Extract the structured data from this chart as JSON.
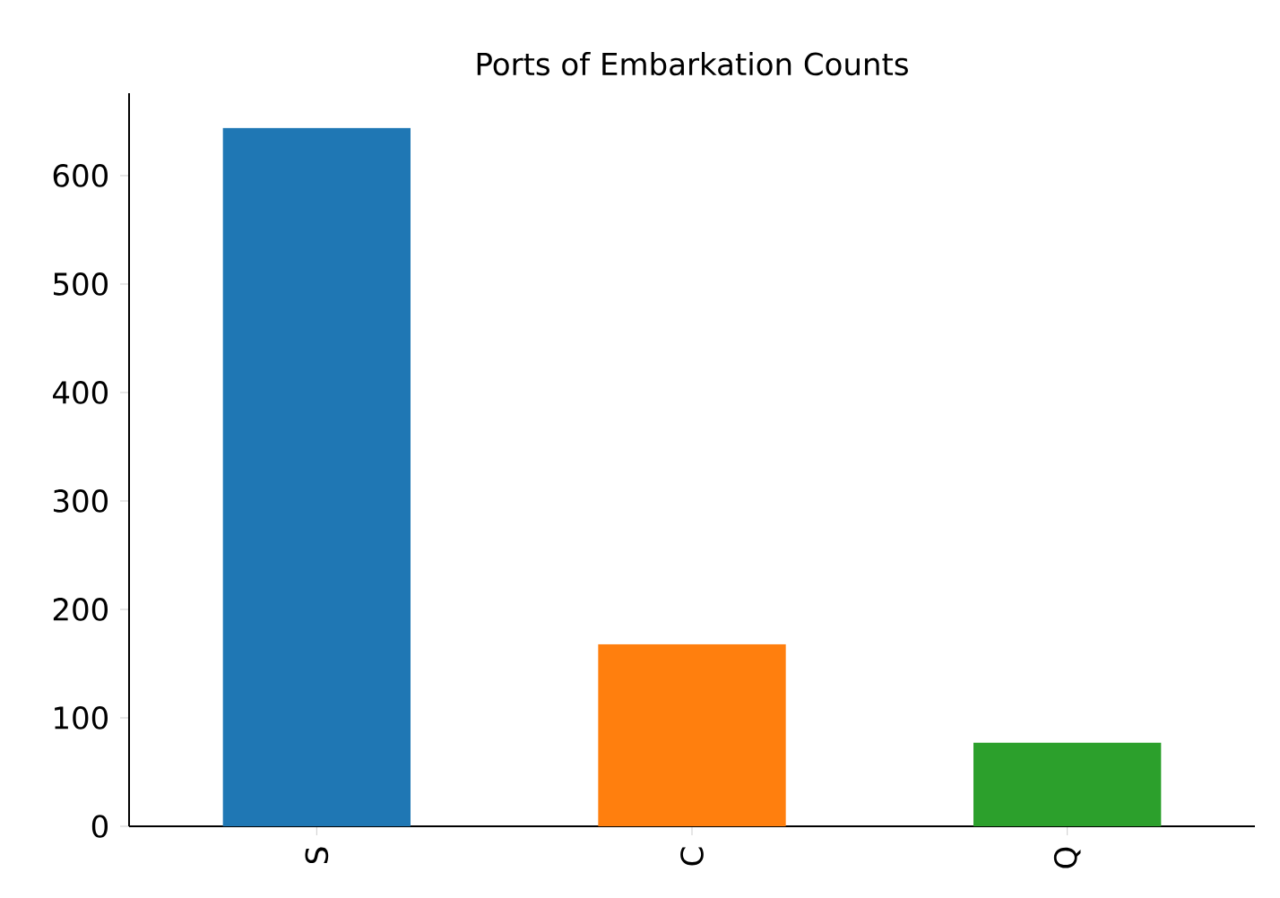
{
  "chart_data": {
    "type": "bar",
    "title": "Ports of Embarkation Counts",
    "categories": [
      "S",
      "C",
      "Q"
    ],
    "values": [
      644,
      168,
      77
    ],
    "colors": [
      "#1f77b4",
      "#ff7f0e",
      "#2ca02c"
    ],
    "ylim": [
      0,
      676
    ],
    "yticks": [
      0,
      100,
      200,
      300,
      400,
      500,
      600
    ]
  }
}
